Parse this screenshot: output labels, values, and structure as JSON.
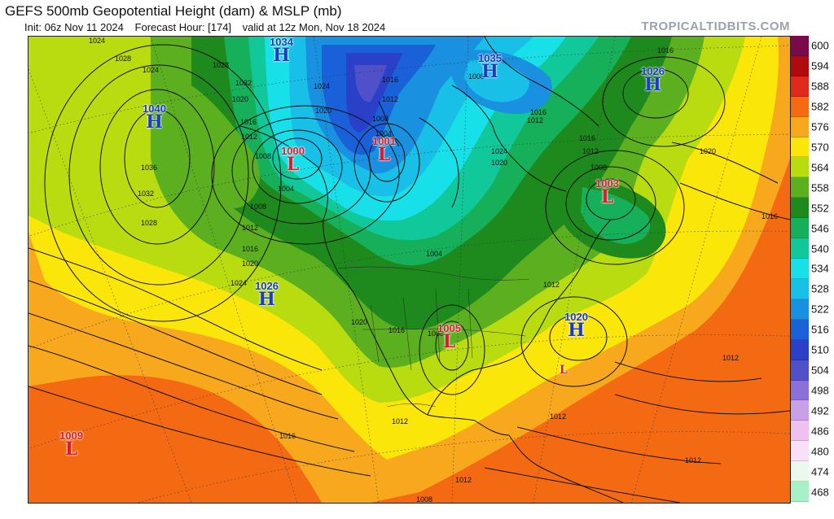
{
  "header": {
    "title": "GEFS 500mb Geopotential Height (dam) & MSLP (mb)",
    "init": "Init: 06z Nov 11 2024",
    "forecast_hour": "Forecast Hour: [174]",
    "valid": "valid at 12z Mon, Nov 18 2024",
    "brand": "TROPICALTIDBITS.COM"
  },
  "legend": {
    "levels": [
      "600",
      "594",
      "588",
      "582",
      "576",
      "570",
      "564",
      "558",
      "552",
      "546",
      "540",
      "534",
      "528",
      "522",
      "516",
      "510",
      "504",
      "498",
      "492",
      "486",
      "480",
      "474",
      "468"
    ],
    "colors": [
      "#7a0a4a",
      "#b00a10",
      "#e0281c",
      "#f46a12",
      "#f8a81c",
      "#fbe60a",
      "#b8dc10",
      "#5cb020",
      "#1e8a1e",
      "#16b05a",
      "#10c89a",
      "#18e0e8",
      "#18c0e8",
      "#1a90e0",
      "#1a60d8",
      "#2a40c8",
      "#5050c8",
      "#8a70d8",
      "#c8a0e8",
      "#f0c0f0",
      "#f8e0f8",
      "#eaf8ee",
      "#a8f0c8"
    ]
  },
  "pressure_centers": [
    {
      "type": "H",
      "value": "1034",
      "name": "high-1034"
    },
    {
      "type": "H",
      "value": "1040",
      "name": "high-1040"
    },
    {
      "type": "L",
      "value": "1000",
      "name": "low-1000"
    },
    {
      "type": "L",
      "value": "1001",
      "name": "low-1001"
    },
    {
      "type": "H",
      "value": "1035",
      "name": "high-1035"
    },
    {
      "type": "H",
      "value": "1026",
      "name": "high-1026-ne"
    },
    {
      "type": "L",
      "value": "1003",
      "name": "low-1003"
    },
    {
      "type": "H",
      "value": "1026",
      "name": "high-1026-pac"
    },
    {
      "type": "L",
      "value": "1005",
      "name": "low-1005"
    },
    {
      "type": "H",
      "value": "1020",
      "name": "high-1020"
    },
    {
      "type": "L",
      "value": "1009",
      "name": "low-1009"
    },
    {
      "type": "L",
      "value": "",
      "name": "low-caribbean"
    }
  ],
  "isobar_labels": [
    "1024",
    "1028",
    "1024",
    "1020",
    "1028",
    "1032",
    "1016",
    "1012",
    "1008",
    "1024",
    "1020",
    "1016",
    "1012",
    "1008",
    "1004",
    "1036",
    "1032",
    "1028",
    "1008",
    "1012",
    "1016",
    "1020",
    "1024",
    "1004",
    "1016",
    "1012",
    "1008",
    "1024",
    "1020",
    "1016",
    "1012",
    "1008",
    "1004",
    "1020",
    "1016",
    "1012",
    "1008",
    "1016",
    "1012",
    "1012",
    "1016",
    "1012",
    "1012",
    "1008",
    "1020",
    "1016",
    "1012"
  ]
}
